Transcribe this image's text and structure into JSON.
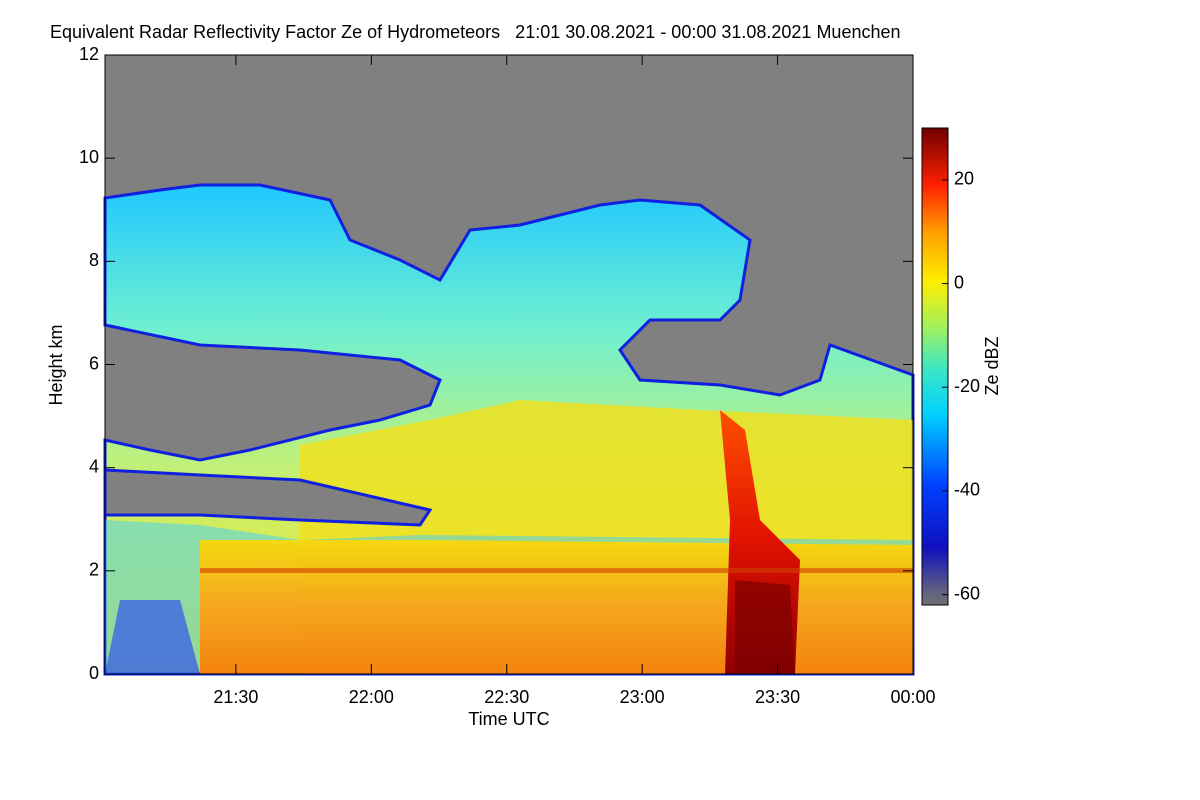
{
  "chart_data": {
    "type": "heatmap",
    "title": "Equivalent Radar Reflectivity Factor Ze of Hydrometeors   21:01 30.08.2021 - 00:00 31.08.2021 Muenchen",
    "xlabel": "Time UTC",
    "ylabel": "Height km",
    "colorbar_label": "Ze dBZ",
    "xlim": [
      1261,
      1440
    ],
    "xticks": [
      {
        "value": 1290,
        "label": "21:30"
      },
      {
        "value": 1320,
        "label": "22:00"
      },
      {
        "value": 1350,
        "label": "22:30"
      },
      {
        "value": 1380,
        "label": "23:00"
      },
      {
        "value": 1410,
        "label": "23:30"
      },
      {
        "value": 1440,
        "label": "00:00"
      }
    ],
    "ylim": [
      0,
      12
    ],
    "yticks": [
      0,
      2,
      4,
      6,
      8,
      10,
      12
    ],
    "clim": [
      -62,
      30
    ],
    "cticks": [
      -60,
      -40,
      -20,
      0,
      20
    ]
  }
}
